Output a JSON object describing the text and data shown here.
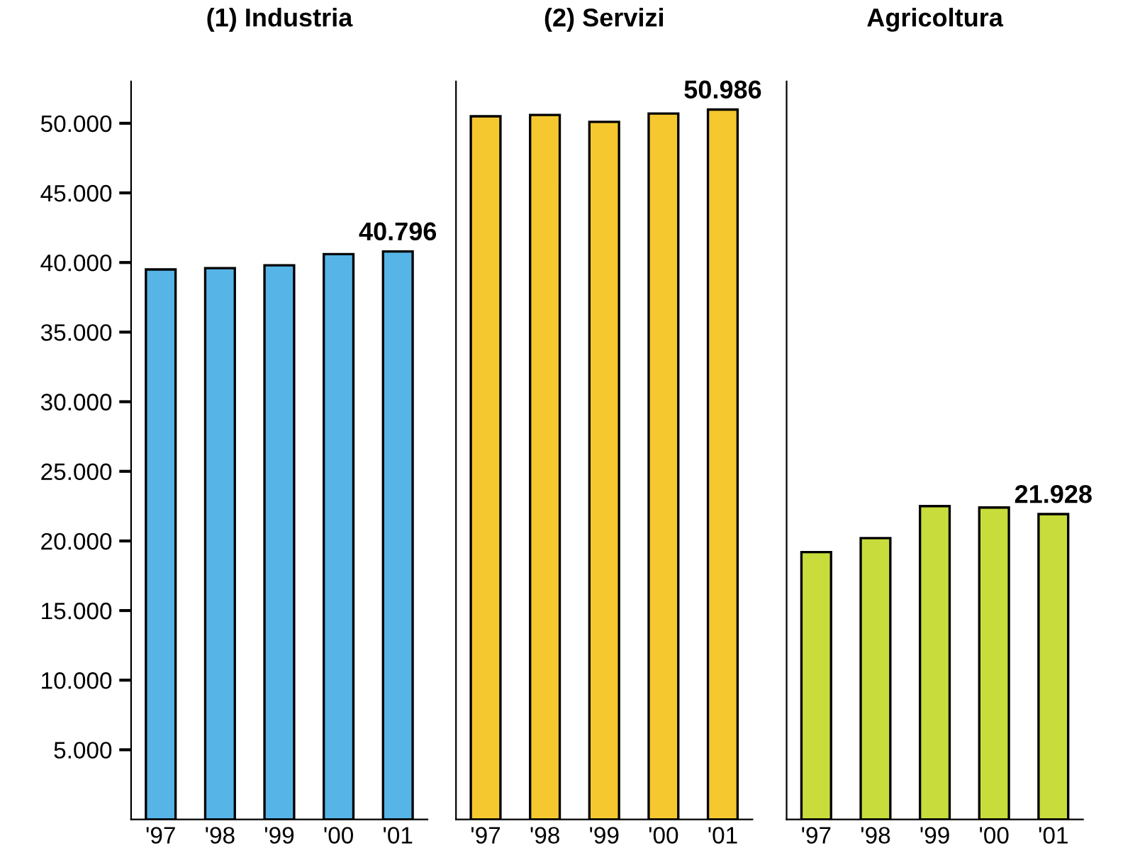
{
  "chart_data": [
    {
      "type": "bar",
      "title": "(1) Industria",
      "categories": [
        "'97",
        "'98",
        "'99",
        "'00",
        "'01"
      ],
      "values": [
        39500,
        39600,
        39800,
        40600,
        40796
      ],
      "value_labels": [
        null,
        null,
        null,
        null,
        "40.796"
      ],
      "color": "#56b4e6",
      "ylim": [
        0,
        53000
      ],
      "yticks": [
        {
          "value": 5000,
          "label": "5.000"
        },
        {
          "value": 10000,
          "label": "10.000"
        },
        {
          "value": 15000,
          "label": "15.000"
        },
        {
          "value": 20000,
          "label": "20.000"
        },
        {
          "value": 25000,
          "label": "25.000"
        },
        {
          "value": 30000,
          "label": "30.000"
        },
        {
          "value": 35000,
          "label": "35.000"
        },
        {
          "value": 40000,
          "label": "40.000"
        },
        {
          "value": 45000,
          "label": "45.000"
        },
        {
          "value": 50000,
          "label": "50.000"
        }
      ],
      "grid": false
    },
    {
      "type": "bar",
      "title": "(2) Servizi",
      "categories": [
        "'97",
        "'98",
        "'99",
        "'00",
        "'01"
      ],
      "values": [
        50500,
        50600,
        50100,
        50700,
        50986
      ],
      "value_labels": [
        null,
        null,
        null,
        null,
        "50.986"
      ],
      "color": "#f5c830",
      "ylim": [
        0,
        53000
      ],
      "tick_labels": "x",
      "grid": false
    },
    {
      "type": "bar",
      "title": "Agricoltura",
      "categories": [
        "'97",
        "'98",
        "'99",
        "'00",
        "'01"
      ],
      "values": [
        19200,
        20200,
        22500,
        22400,
        21928
      ],
      "value_labels": [
        null,
        null,
        null,
        null,
        "21.928"
      ],
      "color": "#c8dc3c",
      "ylim": [
        0,
        53000
      ],
      "tick_labels": "x",
      "grid": false
    }
  ]
}
